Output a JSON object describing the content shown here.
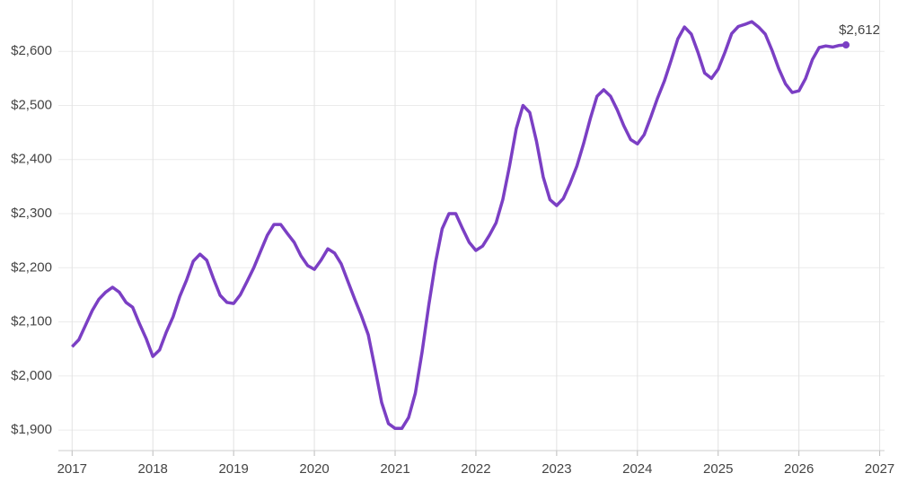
{
  "chart_data": {
    "type": "line",
    "x": [
      2017,
      2017.083,
      2017.167,
      2017.25,
      2017.333,
      2017.417,
      2017.5,
      2017.583,
      2017.667,
      2017.75,
      2017.833,
      2017.917,
      2018,
      2018.083,
      2018.167,
      2018.25,
      2018.333,
      2018.417,
      2018.5,
      2018.583,
      2018.667,
      2018.75,
      2018.833,
      2018.917,
      2019,
      2019.083,
      2019.167,
      2019.25,
      2019.333,
      2019.417,
      2019.5,
      2019.583,
      2019.667,
      2019.75,
      2019.833,
      2019.917,
      2020,
      2020.083,
      2020.167,
      2020.25,
      2020.333,
      2020.417,
      2020.5,
      2020.583,
      2020.667,
      2020.75,
      2020.833,
      2020.917,
      2021,
      2021.083,
      2021.167,
      2021.25,
      2021.333,
      2021.417,
      2021.5,
      2021.583,
      2021.667,
      2021.75,
      2021.833,
      2021.917,
      2022,
      2022.083,
      2022.167,
      2022.25,
      2022.333,
      2022.417,
      2022.5,
      2022.583,
      2022.667,
      2022.75,
      2022.833,
      2022.917,
      2023,
      2023.083,
      2023.167,
      2023.25,
      2023.333,
      2023.417,
      2023.5,
      2023.583,
      2023.667,
      2023.75,
      2023.833,
      2023.917,
      2024,
      2024.083,
      2024.167,
      2024.25,
      2024.333,
      2024.417,
      2024.5,
      2024.583,
      2024.667,
      2024.75,
      2024.833,
      2024.917,
      2025,
      2025.083,
      2025.167,
      2025.25,
      2025.333,
      2025.417,
      2025.5,
      2025.583,
      2025.667,
      2025.75,
      2025.833,
      2025.917,
      2026,
      2026.083,
      2026.167,
      2026.25,
      2026.333,
      2026.417,
      2026.5,
      2026.583
    ],
    "series": [
      {
        "color": "#7b3fc4",
        "values": [
          2054,
          2067,
          2094,
          2121,
          2142,
          2155,
          2164,
          2155,
          2136,
          2127,
          2097,
          2069,
          2036,
          2048,
          2081,
          2109,
          2147,
          2177,
          2212,
          2225,
          2214,
          2180,
          2149,
          2136,
          2134,
          2150,
          2175,
          2200,
          2230,
          2260,
          2280,
          2280,
          2263,
          2247,
          2222,
          2204,
          2197,
          2214,
          2235,
          2227,
          2207,
          2174,
          2142,
          2111,
          2076,
          2015,
          1951,
          1912,
          1903,
          1903,
          1923,
          1968,
          2044,
          2131,
          2210,
          2272,
          2300,
          2300,
          2273,
          2247,
          2232,
          2240,
          2260,
          2283,
          2326,
          2388,
          2457,
          2500,
          2487,
          2434,
          2368,
          2326,
          2315,
          2328,
          2356,
          2388,
          2429,
          2476,
          2517,
          2529,
          2517,
          2492,
          2462,
          2437,
          2429,
          2446,
          2479,
          2514,
          2545,
          2583,
          2623,
          2645,
          2632,
          2598,
          2560,
          2550,
          2567,
          2598,
          2633,
          2646,
          2650,
          2655,
          2645,
          2632,
          2602,
          2568,
          2540,
          2524,
          2527,
          2550,
          2585,
          2607,
          2610,
          2608,
          2611,
          2612
        ],
        "value_labels": [
          null,
          null,
          null,
          null,
          null,
          null,
          null,
          null,
          null,
          null,
          null,
          null,
          null,
          null,
          null,
          null,
          null,
          null,
          null,
          null,
          null,
          null,
          null,
          null,
          null,
          null,
          null,
          null,
          null,
          null,
          null,
          null,
          null,
          null,
          null,
          null,
          null,
          null,
          null,
          null,
          null,
          null,
          null,
          null,
          null,
          null,
          null,
          null,
          null,
          null,
          null,
          null,
          null,
          null,
          null,
          null,
          null,
          null,
          null,
          null,
          null,
          null,
          null,
          null,
          null,
          null,
          null,
          null,
          null,
          null,
          null,
          null,
          null,
          null,
          null,
          null,
          null,
          null,
          null,
          null,
          null,
          null,
          null,
          null,
          null,
          null,
          null,
          null,
          null,
          null,
          null,
          null,
          null,
          null,
          null,
          null,
          null,
          null,
          null,
          null,
          null,
          null,
          null,
          null,
          null,
          null,
          null,
          null,
          null,
          null,
          null,
          null,
          null,
          null,
          null,
          "$2,612"
        ]
      }
    ],
    "xlim": [
      2016.83,
      2027.06
    ],
    "xticks": [
      2017,
      2018,
      2019,
      2020,
      2021,
      2022,
      2023,
      2024,
      2025,
      2026,
      2027
    ],
    "ylim": [
      1862,
      2695
    ],
    "yticks": [
      {
        "value": 1900,
        "label": "$1,900"
      },
      {
        "value": 2000,
        "label": "$2,000"
      },
      {
        "value": 2100,
        "label": "$2,100"
      },
      {
        "value": 2200,
        "label": "$2,200"
      },
      {
        "value": 2300,
        "label": "$2,300"
      },
      {
        "value": 2400,
        "label": "$2,400"
      },
      {
        "value": 2500,
        "label": "$2,500"
      },
      {
        "value": 2600,
        "label": "$2,600"
      }
    ],
    "grid": true
  }
}
